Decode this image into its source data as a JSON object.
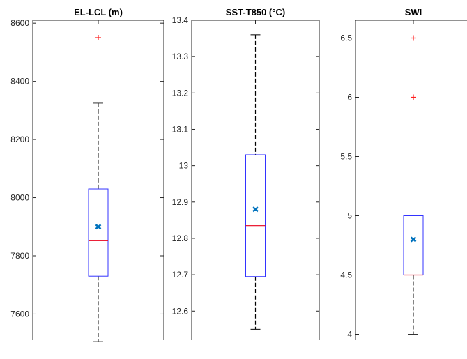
{
  "chart_data": [
    {
      "type": "box",
      "title": "EL-LCL (m)",
      "ylim": [
        7510,
        8610
      ],
      "yticks": [
        7600,
        7800,
        8000,
        8200,
        8400,
        8600
      ],
      "ytick_labels": [
        "7600",
        "7800",
        "8000",
        "8200",
        "8400",
        "8600"
      ],
      "whisker_low": 7505,
      "q1": 7730,
      "median": 7852,
      "q3": 8030,
      "whisker_high": 8325,
      "mean": 7900,
      "outliers": [
        8550
      ],
      "colors": {
        "box": "#3333ff",
        "median": "#e8001c",
        "whisker": "#333333",
        "outlier": "#ff2020",
        "mean": "#0072bd"
      }
    },
    {
      "type": "box",
      "title": "SST-T850 (°C)",
      "ylim": [
        12.52,
        13.4
      ],
      "yticks": [
        12.6,
        12.7,
        12.8,
        12.9,
        13.0,
        13.1,
        13.2,
        13.3,
        13.4
      ],
      "ytick_labels": [
        "12.6",
        "12.7",
        "12.8",
        "12.9",
        "13",
        "13.1",
        "13.2",
        "13.3",
        "13.4"
      ],
      "whisker_low": 12.55,
      "q1": 12.695,
      "median": 12.835,
      "q3": 13.03,
      "whisker_high": 13.36,
      "mean": 12.88,
      "outliers": [],
      "colors": {
        "box": "#3333ff",
        "median": "#e8001c",
        "whisker": "#000000",
        "outlier": "#ff2020",
        "mean": "#0072bd"
      }
    },
    {
      "type": "box",
      "title": "SWI",
      "ylim": [
        3.95,
        6.65
      ],
      "yticks": [
        4,
        4.5,
        5,
        5.5,
        6,
        6.5
      ],
      "ytick_labels": [
        "4",
        "4.5",
        "5",
        "5.5",
        "6",
        "6.5"
      ],
      "whisker_low": 4.0,
      "q1": 4.5,
      "median": 4.5,
      "q3": 5.0,
      "whisker_high": 5.0,
      "mean": 4.8,
      "outliers": [
        6.0,
        6.5
      ],
      "colors": {
        "box": "#3333ff",
        "median": "#e8001c",
        "whisker": "#333333",
        "outlier": "#ff2020",
        "mean": "#0072bd"
      }
    }
  ]
}
